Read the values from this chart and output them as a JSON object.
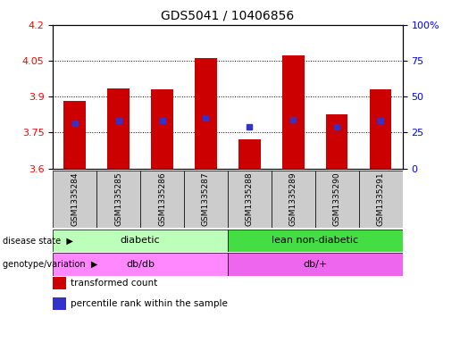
{
  "title": "GDS5041 / 10406856",
  "samples": [
    "GSM1335284",
    "GSM1335285",
    "GSM1335286",
    "GSM1335287",
    "GSM1335288",
    "GSM1335289",
    "GSM1335290",
    "GSM1335291"
  ],
  "bar_values": [
    3.88,
    3.935,
    3.93,
    4.06,
    3.72,
    4.07,
    3.825,
    3.93
  ],
  "percentile_values": [
    3.79,
    3.8,
    3.8,
    3.81,
    3.775,
    3.805,
    3.775,
    3.8
  ],
  "bar_bottom": 3.6,
  "ylim": [
    3.6,
    4.2
  ],
  "y_ticks_left": [
    3.6,
    3.75,
    3.9,
    4.05,
    4.2
  ],
  "y_left_labels": [
    "3.6",
    "3.75",
    "3.9",
    "4.05",
    "4.2"
  ],
  "y_ticks_right_pct": [
    0,
    25,
    50,
    75,
    100
  ],
  "y_right_labels": [
    "0",
    "25",
    "50",
    "75",
    "100%"
  ],
  "bar_color": "#cc0000",
  "blue_color": "#3333cc",
  "disease_groups": [
    {
      "label": "diabetic",
      "start": 0,
      "end": 4,
      "color": "#bbffbb"
    },
    {
      "label": "lean non-diabetic",
      "start": 4,
      "end": 8,
      "color": "#44dd44"
    }
  ],
  "genotype_groups": [
    {
      "label": "db/db",
      "start": 0,
      "end": 4,
      "color": "#ff88ff"
    },
    {
      "label": "db/+",
      "start": 4,
      "end": 8,
      "color": "#ee66ee"
    }
  ],
  "bg_color": "#ffffff",
  "legend_items": [
    {
      "color": "#cc0000",
      "label": "transformed count"
    },
    {
      "color": "#3333cc",
      "label": "percentile rank within the sample"
    }
  ]
}
